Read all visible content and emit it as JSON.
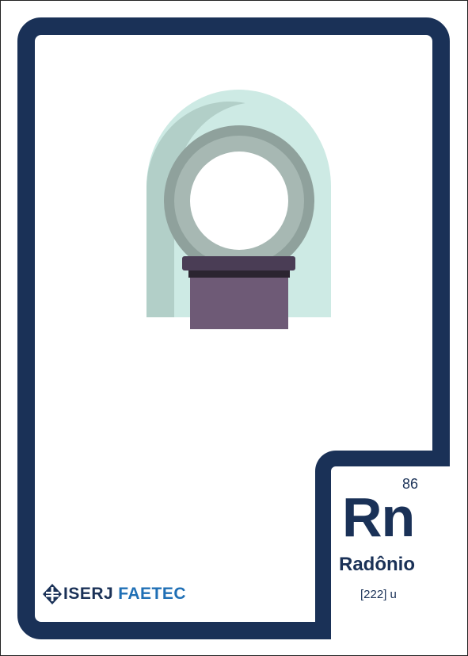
{
  "element": {
    "atomic_number": "86",
    "symbol": "Rn",
    "name": "Radônio",
    "atomic_mass": "[222] u"
  },
  "logo": {
    "primary": "ISERJ",
    "secondary": "FAETEC"
  },
  "illustration": {
    "icon": "mri-scanner-icon"
  },
  "colors": {
    "border": "#1a3157",
    "accent_blue": "#1f6fb5",
    "scanner_shell": "#cdeae4",
    "scanner_ring": "#8fa19c",
    "scanner_bed": "#6e5a76"
  }
}
